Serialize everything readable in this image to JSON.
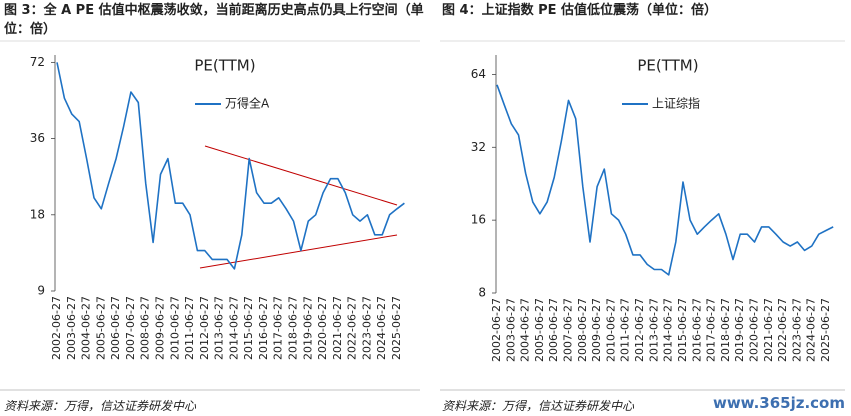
{
  "watermark": "www.365jz.com",
  "chart_data": [
    {
      "type": "line",
      "caption": "图 3：全 A PE 估值中枢震荡收敛，当前距离历史高点仍具上行空间（单位：倍）",
      "title": "PE(TTM)",
      "source": "资料来源：万得，信达证券研发中心",
      "categories": [
        "2002-06-27",
        null,
        "2003-06-27",
        null,
        "2004-06-27",
        null,
        "2005-06-27",
        null,
        "2006-06-27",
        null,
        "2007-06-27",
        null,
        "2008-06-27",
        null,
        "2009-06-27",
        null,
        "2010-06-27",
        null,
        "2011-06-27",
        null,
        "2012-06-27",
        null,
        "2013-06-27",
        null,
        "2014-06-27",
        null,
        "2015-06-27",
        null,
        "2016-06-27",
        null,
        "2017-06-27",
        null,
        "2018-06-27",
        null,
        "2019-06-27",
        null,
        "2020-06-27",
        null,
        "2021-06-27",
        null,
        "2022-06-27",
        null,
        "2023-06-27",
        null,
        "2024-06-27",
        null,
        "2025-06-27",
        null
      ],
      "series": [
        {
          "name": "万得全A",
          "color": "#1f72c4",
          "values": [
            72,
            52,
            45,
            42,
            30,
            21,
            19,
            24,
            30,
            40,
            55,
            50,
            24,
            14,
            26,
            30,
            20,
            20,
            18,
            13,
            13,
            12,
            12,
            12,
            11,
            15,
            30,
            22,
            20,
            20,
            21,
            19,
            17,
            13,
            17,
            18,
            22,
            25,
            25,
            22,
            18,
            17,
            18,
            15,
            15,
            18,
            19,
            20
          ]
        }
      ],
      "log_y": true,
      "ylim": [
        9,
        77
      ],
      "yticks": [
        9,
        18,
        36,
        72
      ]
    },
    {
      "type": "line",
      "caption": "图 4：上证指数 PE 估值低位震荡（单位：倍）",
      "title": "PE(TTM)",
      "source": "资料来源：万得，信达证券研发中心",
      "categories": [
        "2002-06-27",
        null,
        "2003-06-27",
        null,
        "2004-06-27",
        null,
        "2005-06-27",
        null,
        "2006-06-27",
        null,
        "2007-06-27",
        null,
        "2008-06-27",
        null,
        "2009-06-27",
        null,
        "2010-06-27",
        null,
        "2011-06-27",
        null,
        "2012-06-27",
        null,
        "2013-06-27",
        null,
        "2014-06-27",
        null,
        "2015-06-27",
        null,
        "2016-06-27",
        null,
        "2017-06-27",
        null,
        "2018-06-27",
        null,
        "2019-06-27",
        null,
        "2020-06-27",
        null,
        "2021-06-27",
        null,
        "2022-06-27",
        null,
        "2023-06-27",
        null,
        "2024-06-27",
        null,
        "2025-06-27",
        null
      ],
      "series": [
        {
          "name": "上证综指",
          "color": "#1f72c4",
          "values": [
            58,
            48,
            40,
            36,
            25,
            19,
            17,
            19,
            24,
            34,
            50,
            42,
            22,
            13,
            22,
            26,
            17,
            16,
            14,
            11.5,
            11.5,
            10.5,
            10,
            10,
            9.5,
            13,
            23,
            16,
            14,
            15,
            16,
            17,
            14,
            11,
            14,
            14,
            13,
            15,
            15,
            14,
            13,
            12.5,
            13,
            12,
            12.5,
            14,
            14.5,
            15
          ]
        }
      ],
      "log_y": true,
      "ylim": [
        8,
        77
      ],
      "yticks": [
        8,
        16,
        32,
        64
      ]
    }
  ]
}
